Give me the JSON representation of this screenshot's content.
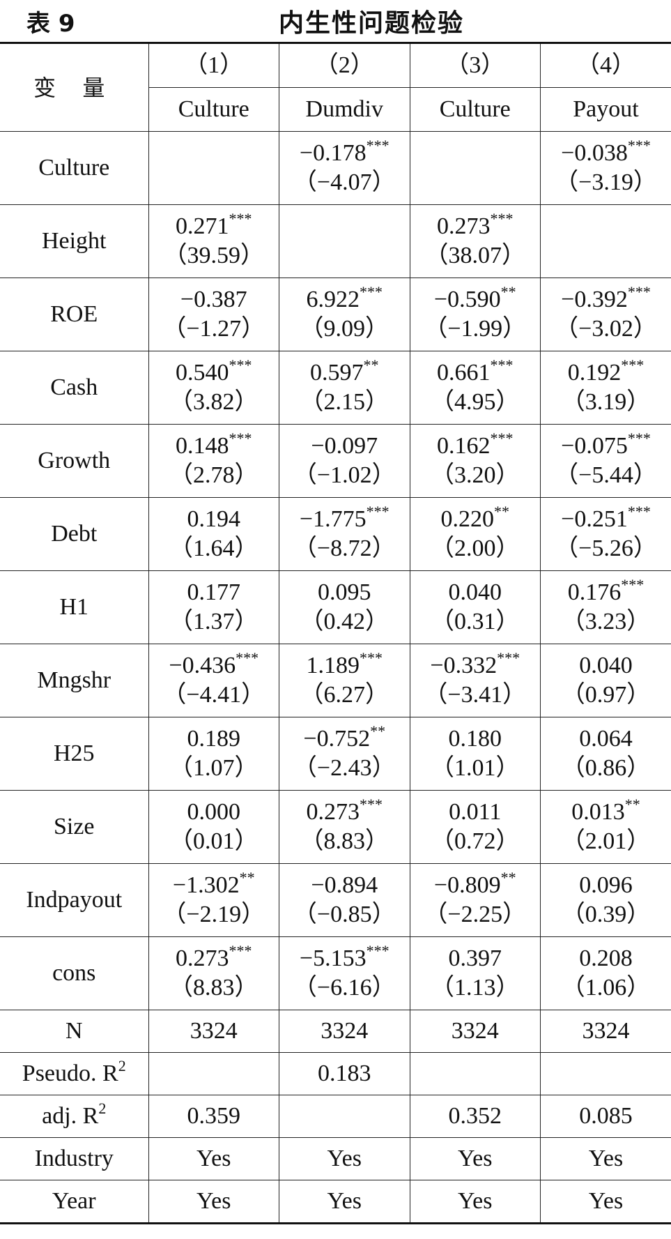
{
  "caption": {
    "number": "表 9",
    "title": "内生性问题检验"
  },
  "header": {
    "variable_label": "变 量",
    "columns": [
      {
        "num": "（1）",
        "dep": "Culture"
      },
      {
        "num": "（2）",
        "dep": "Dumdiv"
      },
      {
        "num": "（3）",
        "dep": "Culture"
      },
      {
        "num": "（4）",
        "dep": "Payout"
      }
    ]
  },
  "rows": [
    {
      "var": "Culture",
      "cells": [
        {
          "coef": "",
          "stars": "",
          "t": ""
        },
        {
          "coef": "−0.178",
          "stars": "***",
          "t": "（−4.07）"
        },
        {
          "coef": "",
          "stars": "",
          "t": ""
        },
        {
          "coef": "−0.038",
          "stars": "***",
          "t": "（−3.19）"
        }
      ]
    },
    {
      "var": "Height",
      "cells": [
        {
          "coef": "0.271",
          "stars": "***",
          "t": "（39.59）"
        },
        {
          "coef": "",
          "stars": "",
          "t": ""
        },
        {
          "coef": "0.273",
          "stars": "***",
          "t": "（38.07）"
        },
        {
          "coef": "",
          "stars": "",
          "t": ""
        }
      ]
    },
    {
      "var": "ROE",
      "cells": [
        {
          "coef": "−0.387",
          "stars": "",
          "t": "（−1.27）"
        },
        {
          "coef": "6.922",
          "stars": "***",
          "t": "（9.09）"
        },
        {
          "coef": "−0.590",
          "stars": "**",
          "t": "（−1.99）"
        },
        {
          "coef": "−0.392",
          "stars": "***",
          "t": "（−3.02）"
        }
      ]
    },
    {
      "var": "Cash",
      "cells": [
        {
          "coef": "0.540",
          "stars": "***",
          "t": "（3.82）"
        },
        {
          "coef": "0.597",
          "stars": "**",
          "t": "（2.15）"
        },
        {
          "coef": "0.661",
          "stars": "***",
          "t": "（4.95）"
        },
        {
          "coef": "0.192",
          "stars": "***",
          "t": "（3.19）"
        }
      ]
    },
    {
      "var": "Growth",
      "cells": [
        {
          "coef": "0.148",
          "stars": "***",
          "t": "（2.78）"
        },
        {
          "coef": "−0.097",
          "stars": "",
          "t": "（−1.02）"
        },
        {
          "coef": "0.162",
          "stars": "***",
          "t": "（3.20）"
        },
        {
          "coef": "−0.075",
          "stars": "***",
          "t": "（−5.44）"
        }
      ]
    },
    {
      "var": "Debt",
      "cells": [
        {
          "coef": "0.194",
          "stars": "",
          "t": "（1.64）"
        },
        {
          "coef": "−1.775",
          "stars": "***",
          "t": "（−8.72）"
        },
        {
          "coef": "0.220",
          "stars": "**",
          "t": "（2.00）"
        },
        {
          "coef": "−0.251",
          "stars": "***",
          "t": "（−5.26）"
        }
      ]
    },
    {
      "var": "H1",
      "cells": [
        {
          "coef": "0.177",
          "stars": "",
          "t": "（1.37）"
        },
        {
          "coef": "0.095",
          "stars": "",
          "t": "（0.42）"
        },
        {
          "coef": "0.040",
          "stars": "",
          "t": "（0.31）"
        },
        {
          "coef": "0.176",
          "stars": "***",
          "t": "（3.23）"
        }
      ]
    },
    {
      "var": "Mngshr",
      "cells": [
        {
          "coef": "−0.436",
          "stars": "***",
          "t": "（−4.41）"
        },
        {
          "coef": "1.189",
          "stars": "***",
          "t": "（6.27）"
        },
        {
          "coef": "−0.332",
          "stars": "***",
          "t": "（−3.41）"
        },
        {
          "coef": "0.040",
          "stars": "",
          "t": "（0.97）"
        }
      ]
    },
    {
      "var": "H25",
      "cells": [
        {
          "coef": "0.189",
          "stars": "",
          "t": "（1.07）"
        },
        {
          "coef": "−0.752",
          "stars": "**",
          "t": "（−2.43）"
        },
        {
          "coef": "0.180",
          "stars": "",
          "t": "（1.01）"
        },
        {
          "coef": "0.064",
          "stars": "",
          "t": "（0.86）"
        }
      ]
    },
    {
      "var": "Size",
      "cells": [
        {
          "coef": "0.000",
          "stars": "",
          "t": "（0.01）"
        },
        {
          "coef": "0.273",
          "stars": "***",
          "t": "（8.83）"
        },
        {
          "coef": "0.011",
          "stars": "",
          "t": "（0.72）"
        },
        {
          "coef": "0.013",
          "stars": "**",
          "t": "（2.01）"
        }
      ]
    },
    {
      "var": "Indpayout",
      "cells": [
        {
          "coef": "−1.302",
          "stars": "**",
          "t": "（−2.19）"
        },
        {
          "coef": "−0.894",
          "stars": "",
          "t": "（−0.85）"
        },
        {
          "coef": "−0.809",
          "stars": "**",
          "t": "（−2.25）"
        },
        {
          "coef": "0.096",
          "stars": "",
          "t": "（0.39）"
        }
      ]
    },
    {
      "var": "cons",
      "cells": [
        {
          "coef": "0.273",
          "stars": "***",
          "t": "（8.83）"
        },
        {
          "coef": "−5.153",
          "stars": "***",
          "t": "（−6.16）"
        },
        {
          "coef": "0.397",
          "stars": "",
          "t": "（1.13）"
        },
        {
          "coef": "0.208",
          "stars": "",
          "t": "（1.06）"
        }
      ]
    }
  ],
  "stats": [
    {
      "label": "N",
      "sup": "",
      "values": [
        "3324",
        "3324",
        "3324",
        "3324"
      ]
    },
    {
      "label": "Pseudo. R",
      "sup": "2",
      "values": [
        "",
        "0.183",
        "",
        ""
      ]
    },
    {
      "label": "adj. R",
      "sup": "2",
      "values": [
        "0.359",
        "",
        "0.352",
        "0.085"
      ]
    },
    {
      "label": "Industry",
      "sup": "",
      "values": [
        "Yes",
        "Yes",
        "Yes",
        "Yes"
      ]
    },
    {
      "label": "Year",
      "sup": "",
      "values": [
        "Yes",
        "Yes",
        "Yes",
        "Yes"
      ]
    }
  ]
}
